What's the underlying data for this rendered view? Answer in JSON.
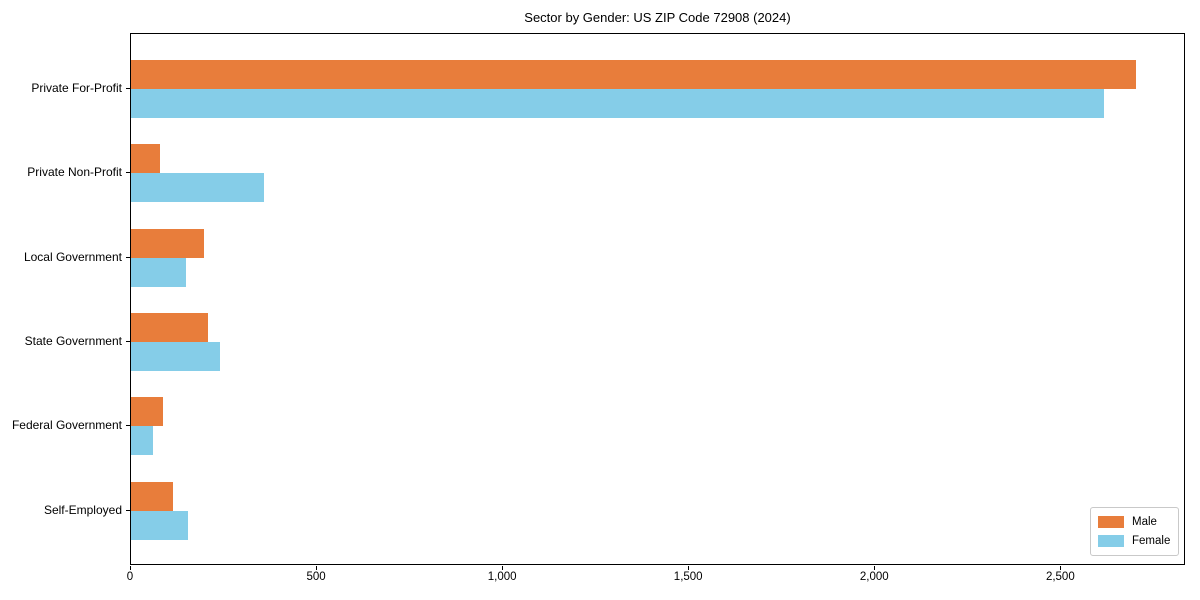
{
  "figure": {
    "background": "#ffffff",
    "plot_border_color": "#000000"
  },
  "chart_data": {
    "type": "bar",
    "orientation": "horizontal",
    "title": "Sector by Gender: US ZIP Code 72908 (2024)",
    "categories": [
      "Private For-Profit",
      "Private Non-Profit",
      "Local Government",
      "State Government",
      "Federal Government",
      "Self-Employed"
    ],
    "series": [
      {
        "name": "Male",
        "color": "#E87D3B",
        "values": [
          2700,
          78,
          195,
          207,
          85,
          113
        ]
      },
      {
        "name": "Female",
        "color": "#85CDE8",
        "values": [
          2615,
          358,
          147,
          238,
          60,
          153
        ]
      }
    ],
    "xlabel": "",
    "ylabel": "",
    "xlim": [
      0,
      2835
    ],
    "x_ticks": [
      0,
      500,
      1000,
      1500,
      2000,
      2500
    ],
    "x_tick_labels": [
      "0",
      "500",
      "1,000",
      "1,500",
      "2,000",
      "2,500"
    ],
    "grid": false,
    "legend": {
      "position": "lower right",
      "entries": [
        "Male",
        "Female"
      ]
    }
  }
}
